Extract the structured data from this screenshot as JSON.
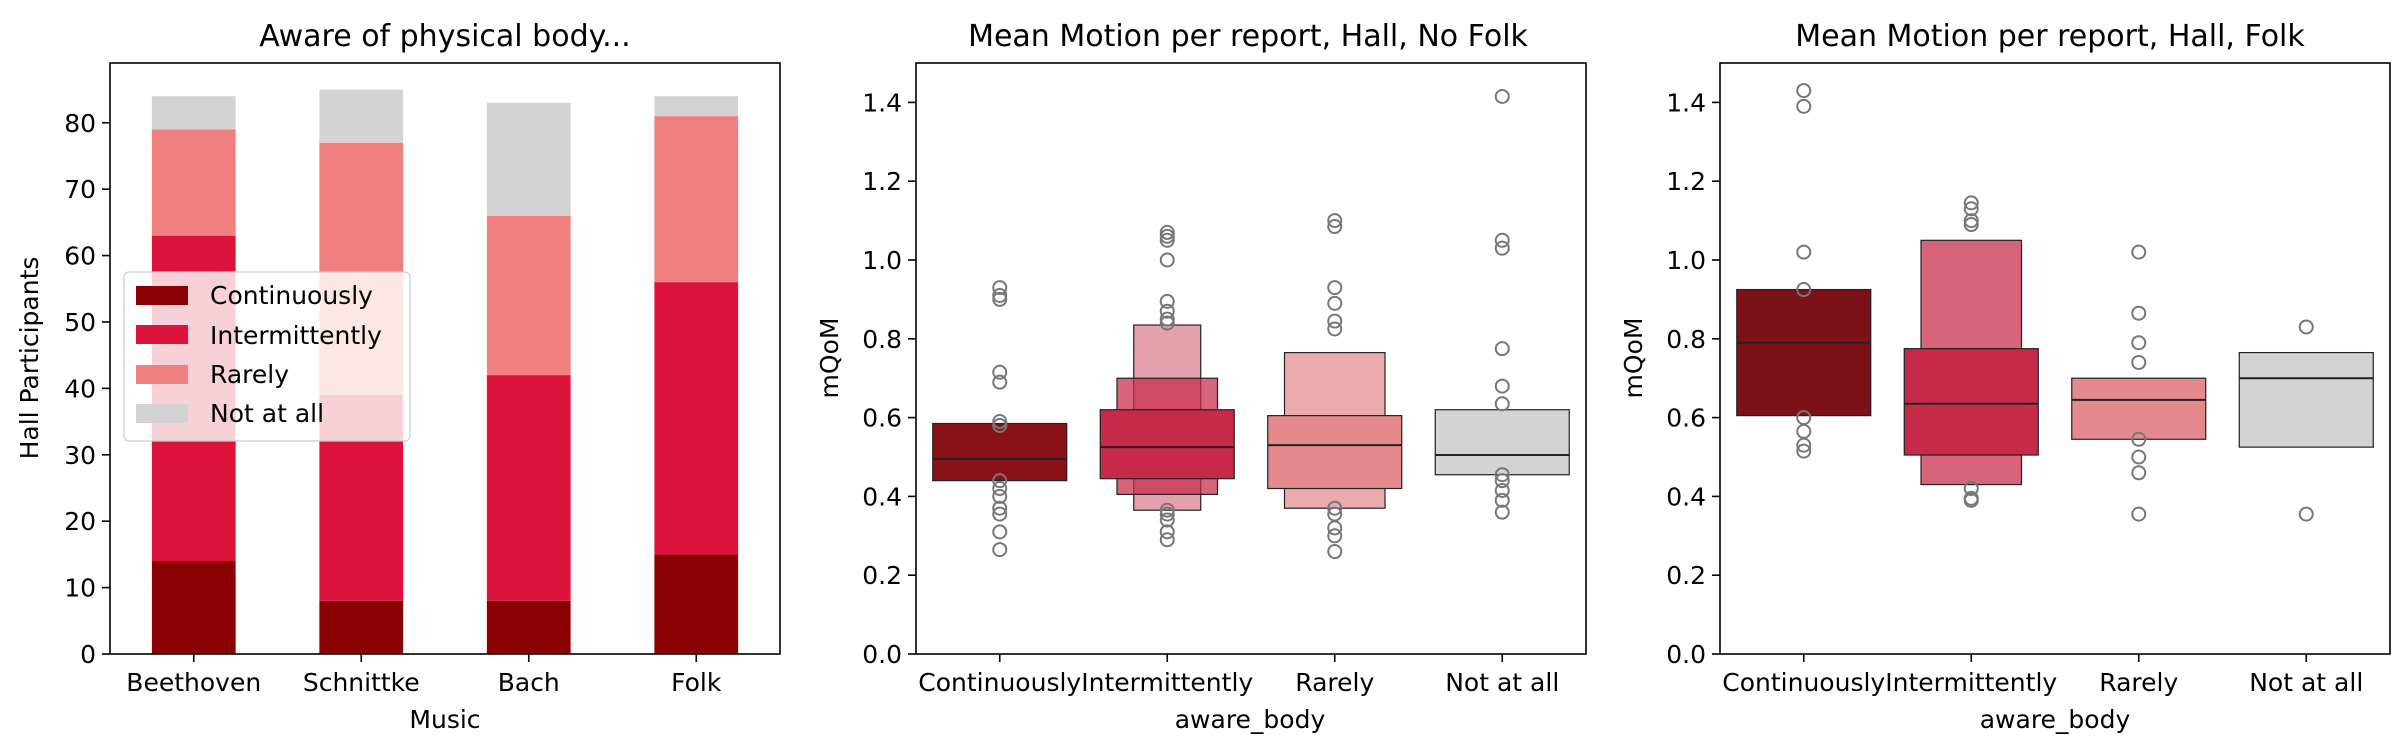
{
  "chart_data": [
    {
      "type": "bar",
      "stacked": true,
      "title": "Aware of physical body...",
      "xlabel": "Music",
      "ylabel": "Hall Participants",
      "categories": [
        "Beethoven",
        "Schnittke",
        "Bach",
        "Folk"
      ],
      "ylim": [
        0,
        89
      ],
      "yticks": [
        0,
        10,
        20,
        30,
        40,
        50,
        60,
        70,
        80
      ],
      "legend_position": "center-left",
      "series": [
        {
          "name": "Continuously",
          "color": "#8b0000",
          "values": [
            14,
            8,
            8,
            15
          ]
        },
        {
          "name": "Intermittently",
          "color": "#dc143c",
          "values": [
            49,
            31,
            34,
            41
          ]
        },
        {
          "name": "Rarely",
          "color": "#f08080",
          "values": [
            16,
            38,
            24,
            25
          ]
        },
        {
          "name": "Not at all",
          "color": "#d3d3d3",
          "values": [
            5,
            8,
            17,
            3
          ]
        }
      ]
    },
    {
      "type": "boxen",
      "title": "Mean Motion per report, Hall, No Folk",
      "xlabel": "aware_body",
      "ylabel": "mQoM",
      "categories": [
        "Continuously",
        "Intermittently",
        "Rarely",
        "Not at all"
      ],
      "ylim": [
        0,
        1.5
      ],
      "yticks": [
        "0.0",
        "0.2",
        "0.4",
        "0.6",
        "0.8",
        "1.0",
        "1.2",
        "1.4"
      ],
      "groups": [
        {
          "color": "#8b1118",
          "median": 0.495,
          "boxes": [
            [
              0.44,
              0.585
            ]
          ],
          "outliers": [
            0.93,
            0.91,
            0.9,
            0.715,
            0.69,
            0.59,
            0.58,
            0.44,
            0.42,
            0.4,
            0.37,
            0.355,
            0.31,
            0.265
          ]
        },
        {
          "color": "#c62a48",
          "median": 0.525,
          "boxes": [
            [
              0.445,
              0.62
            ],
            [
              0.405,
              0.7
            ],
            [
              0.365,
              0.835
            ]
          ],
          "outliers": [
            1.07,
            1.06,
            1.05,
            1.0,
            0.895,
            0.87,
            0.85,
            0.84,
            0.365,
            0.355,
            0.34,
            0.31,
            0.29
          ]
        },
        {
          "color": "#e58a8c",
          "median": 0.53,
          "boxes": [
            [
              0.42,
              0.605
            ],
            [
              0.37,
              0.765
            ]
          ],
          "outliers": [
            1.1,
            1.085,
            0.93,
            0.89,
            0.845,
            0.825,
            0.37,
            0.355,
            0.32,
            0.3,
            0.26
          ]
        },
        {
          "color": "#d3d3d3",
          "median": 0.505,
          "boxes": [
            [
              0.455,
              0.62
            ]
          ],
          "outliers": [
            1.415,
            1.05,
            1.03,
            0.775,
            0.68,
            0.635,
            0.455,
            0.44,
            0.415,
            0.39,
            0.36
          ]
        }
      ]
    },
    {
      "type": "boxen",
      "title": "Mean Motion per report, Hall, Folk",
      "xlabel": "aware_body",
      "ylabel": "mQoM",
      "categories": [
        "Continuously",
        "Intermittently",
        "Rarely",
        "Not at all"
      ],
      "ylim": [
        0,
        1.5
      ],
      "yticks": [
        "0.0",
        "0.2",
        "0.4",
        "0.6",
        "0.8",
        "1.0",
        "1.2",
        "1.4"
      ],
      "groups": [
        {
          "color": "#7d1118",
          "median": 0.79,
          "boxes": [
            [
              0.605,
              0.925
            ]
          ],
          "outliers": [
            1.43,
            1.39,
            1.02,
            0.925,
            0.6,
            0.565,
            0.53,
            0.515
          ]
        },
        {
          "color": "#c62a48",
          "median": 0.635,
          "boxes": [
            [
              0.505,
              0.775
            ],
            [
              0.43,
              1.05
            ]
          ],
          "outliers": [
            1.145,
            1.13,
            1.1,
            1.09,
            0.42,
            0.395,
            0.39
          ]
        },
        {
          "color": "#e58a8c",
          "median": 0.645,
          "boxes": [
            [
              0.545,
              0.7
            ]
          ],
          "outliers": [
            1.02,
            0.865,
            0.79,
            0.74,
            0.545,
            0.5,
            0.46,
            0.355
          ]
        },
        {
          "color": "#d3d3d3",
          "median": 0.7,
          "boxes": [
            [
              0.525,
              0.765
            ]
          ],
          "outliers": [
            0.83,
            0.355
          ]
        }
      ]
    }
  ]
}
